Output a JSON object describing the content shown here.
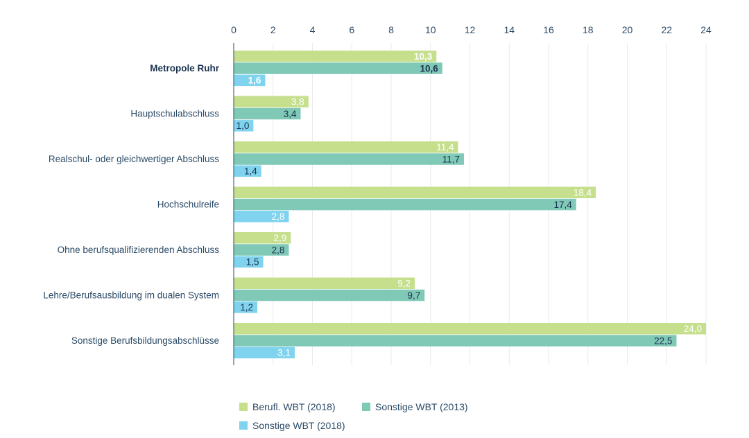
{
  "chart_data": {
    "type": "bar",
    "orientation": "horizontal",
    "xlim": [
      0,
      24
    ],
    "x_ticks": [
      "0",
      "2",
      "4",
      "6",
      "8",
      "10",
      "12",
      "14",
      "16",
      "18",
      "20",
      "22",
      "24"
    ],
    "x_axis_position": "top",
    "grid": true,
    "legend_position": "bottom-left",
    "categories": [
      "Metropole Ruhr",
      "Hauptschulabschluss",
      "Realschul- oder gleichwertiger Abschluss",
      "Hochschulreife",
      "Ohne berufsqualifizierenden Abschluss",
      "Lehre/Berufsausbildung im dualen System",
      "Sonstige Berufsbildungsabschlüsse"
    ],
    "highlight_category": "Metropole Ruhr",
    "series": [
      {
        "name": "Berufl. WBT (2018)",
        "color": "#c5df8d",
        "values": [
          10.3,
          3.8,
          11.4,
          18.4,
          2.9,
          9.2,
          24.0
        ],
        "labels": [
          "10,3",
          "3,8",
          "11,4",
          "18,4",
          "2,9",
          "9,2",
          "24,0"
        ]
      },
      {
        "name": "Sonstige WBT (2013)",
        "color": "#7fc9b6",
        "values": [
          10.6,
          3.4,
          11.7,
          17.4,
          2.8,
          9.7,
          22.5
        ],
        "labels": [
          "10,6",
          "3,4",
          "11,7",
          "17,4",
          "2,8",
          "9,7",
          "22,5"
        ]
      },
      {
        "name": "Sonstige WBT (2018)",
        "color": "#7fd3ee",
        "values": [
          1.6,
          1.0,
          1.4,
          2.8,
          1.5,
          1.2,
          3.1
        ],
        "labels": [
          "1,6",
          "1,0",
          "1,4",
          "2,8",
          "1,5",
          "1,2",
          "3,1"
        ]
      }
    ]
  }
}
